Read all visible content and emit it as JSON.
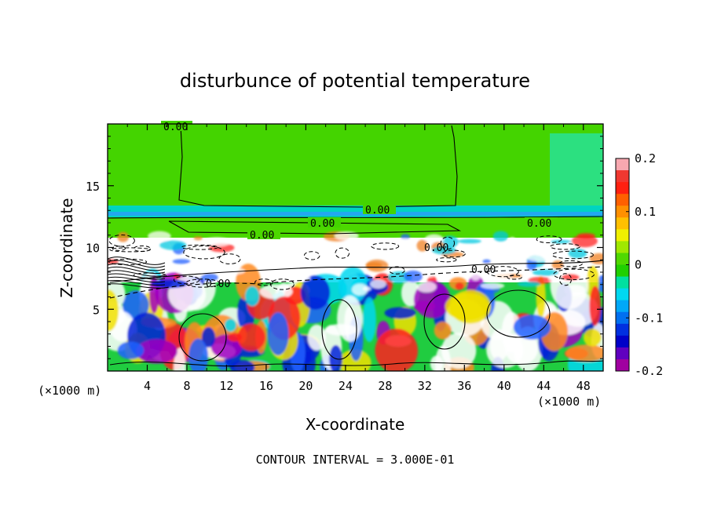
{
  "chart_data": {
    "type": "heatmap",
    "title": "disturbunce of potential temperature",
    "xlabel": "X-coordinate",
    "ylabel": "Z-coordinate",
    "x_unit": "(×1000 m)",
    "y_unit": "(×1000 m)",
    "xlim": [
      0,
      50
    ],
    "ylim": [
      0,
      20
    ],
    "x_ticks": [
      4,
      8,
      12,
      16,
      20,
      24,
      28,
      32,
      36,
      40,
      44,
      48
    ],
    "y_ticks": [
      5,
      10,
      15
    ],
    "colorbar": {
      "range": [
        -0.2,
        0.2
      ],
      "tick_labels": [
        "0.2",
        "0.1",
        "0",
        "-0.1",
        "-0.2"
      ],
      "tick_values": [
        0.2,
        0.1,
        0,
        -0.1,
        -0.2
      ],
      "colors": [
        "#f8a8b0",
        "#f03830",
        "#ff2010",
        "#ff6000",
        "#ff9000",
        "#ffc000",
        "#f0f000",
        "#a0e800",
        "#50d800",
        "#20d000",
        "#00e0a0",
        "#00d8f0",
        "#00a8f8",
        "#0070f0",
        "#0030e0",
        "#0000c8",
        "#6000c0",
        "#a000a0"
      ]
    },
    "contour_labels": [
      "0.00",
      "0.00",
      "0.00",
      "0.00",
      "0.00",
      "0.00",
      "0.00",
      "0.00"
    ],
    "contour_interval": "CONTOUR INTERVAL = 3.000E-01",
    "grid": false
  }
}
